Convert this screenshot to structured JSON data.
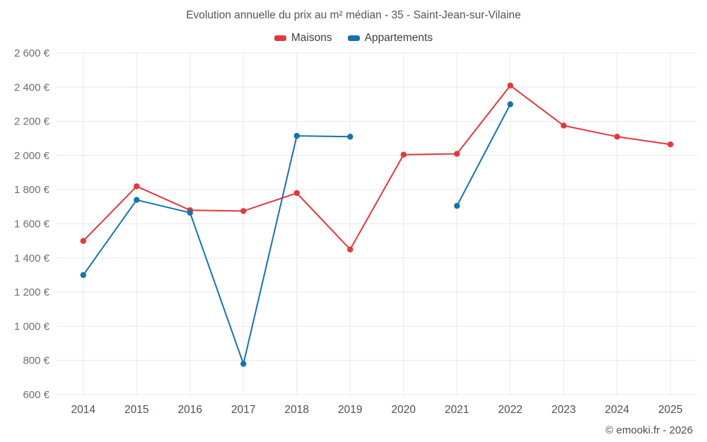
{
  "header": {
    "title": "Evolution annuelle du prix au m² médian - 35 - Saint-Jean-sur-Vilaine"
  },
  "attribution": "© emooki.fr - 2026",
  "chart_data": {
    "type": "line",
    "title": "Evolution annuelle du prix au m² médian - 35 - Saint-Jean-sur-Vilaine",
    "categories": [
      "2014",
      "2015",
      "2016",
      "2017",
      "2018",
      "2019",
      "2020",
      "2021",
      "2022",
      "2023",
      "2024",
      "2025"
    ],
    "series": [
      {
        "name": "Maisons",
        "color": "#e0393e",
        "values": [
          1500,
          1820,
          1680,
          1675,
          1780,
          1450,
          2005,
          2010,
          2410,
          2175,
          2110,
          2065
        ]
      },
      {
        "name": "Appartements",
        "color": "#1772ad",
        "values": [
          1300,
          1740,
          1665,
          780,
          2115,
          2110,
          null,
          1705,
          2300,
          null,
          null,
          null
        ]
      }
    ],
    "xlabel": "",
    "ylabel": "",
    "ylim": [
      600,
      2600
    ],
    "ytick_step": 200,
    "y_suffix": " €",
    "grid": true,
    "legend_position": "top",
    "grid_color": "#e8e8e8",
    "marker_radius": 4.2,
    "line_width": 2
  }
}
